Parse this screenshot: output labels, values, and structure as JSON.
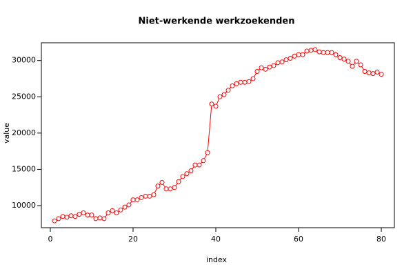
{
  "chart_data": {
    "type": "line",
    "title": "Niet-werkende werkzoekenden",
    "x_label": "index",
    "y_label": "value",
    "x": [
      1,
      2,
      3,
      4,
      5,
      6,
      7,
      8,
      9,
      10,
      11,
      12,
      13,
      14,
      15,
      16,
      17,
      18,
      19,
      20,
      21,
      22,
      23,
      24,
      25,
      26,
      27,
      28,
      29,
      30,
      31,
      32,
      33,
      34,
      35,
      36,
      37,
      38,
      39,
      40,
      41,
      42,
      43,
      44,
      45,
      46,
      47,
      48,
      49,
      50,
      51,
      52,
      53,
      54,
      55,
      56,
      57,
      58,
      59,
      60,
      61,
      62,
      63,
      64,
      65,
      66,
      67,
      68,
      69,
      70,
      71,
      72,
      73,
      74,
      75,
      76,
      77,
      78,
      79,
      80
    ],
    "series": [
      {
        "name": "value",
        "color": "#ff0000",
        "values": [
          7900,
          8200,
          8500,
          8400,
          8600,
          8500,
          8800,
          9000,
          8700,
          8700,
          8200,
          8300,
          8200,
          9000,
          9300,
          9000,
          9400,
          9800,
          10100,
          10800,
          10800,
          11100,
          11300,
          11300,
          11500,
          12700,
          13200,
          12300,
          12300,
          12500,
          13300,
          14000,
          14400,
          14800,
          15600,
          15600,
          16200,
          17300,
          24000,
          23700,
          25000,
          25300,
          25900,
          26500,
          26800,
          27000,
          27000,
          27100,
          27500,
          28500,
          29000,
          28800,
          29100,
          29300,
          29700,
          29800,
          30100,
          30300,
          30600,
          30800,
          30800,
          31300,
          31400,
          31500,
          31200,
          31100,
          31100,
          31100,
          30800,
          30400,
          30200,
          29900,
          29200,
          29900,
          29400,
          28500,
          28300,
          28200,
          28400,
          28100
        ]
      }
    ],
    "xlim": [
      -2.16,
      83.16
    ],
    "ylim": [
      6956,
      32444
    ],
    "xticks": [
      0,
      20,
      40,
      60,
      80
    ],
    "yticks": [
      10000,
      15000,
      20000,
      25000,
      30000
    ]
  }
}
